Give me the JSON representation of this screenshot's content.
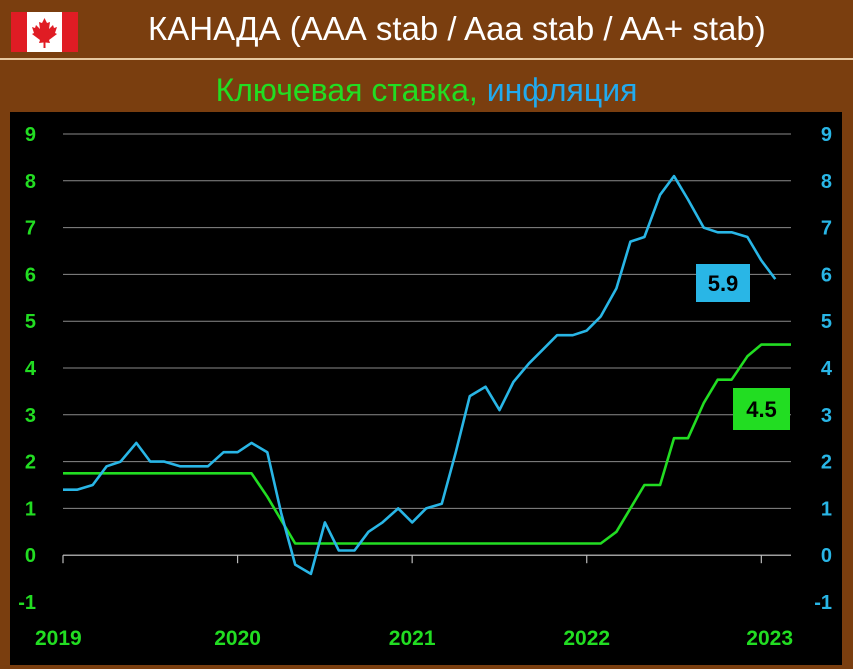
{
  "header": {
    "title": "КАНАДА (ААА stab / Aaa stab / AA+ stab)",
    "flag_icon": "canada-flag-icon"
  },
  "subtitle": {
    "rate_label": "Ключевая ставка,",
    "inflation_label": "инфляция"
  },
  "colors": {
    "background": "#7a3e0f",
    "plot_bg": "#000000",
    "rate": "#22dd22",
    "inflation": "#29b6e6",
    "grid": "#8a8a8a"
  },
  "chart_data": {
    "type": "line",
    "ylim": [
      -1,
      9
    ],
    "yticks": [
      "-1",
      "0",
      "1",
      "2",
      "3",
      "4",
      "5",
      "6",
      "7",
      "8",
      "9"
    ],
    "xticks": [
      {
        "label": "2019",
        "x": 2019
      },
      {
        "label": "2020",
        "x": 2020
      },
      {
        "label": "2021",
        "x": 2021
      },
      {
        "label": "2022",
        "x": 2022
      },
      {
        "label": "2023",
        "x": 2023
      }
    ],
    "xlim": [
      2019,
      2023.17
    ],
    "grid": true,
    "series": [
      {
        "key": "rate",
        "color": "#22dd22",
        "end_label": "4.5",
        "points": [
          [
            2019.0,
            1.75
          ],
          [
            2020.08,
            1.75
          ],
          [
            2020.17,
            1.25
          ],
          [
            2020.25,
            0.75
          ],
          [
            2020.33,
            0.25
          ],
          [
            2022.08,
            0.25
          ],
          [
            2022.17,
            0.5
          ],
          [
            2022.25,
            1.0
          ],
          [
            2022.33,
            1.5
          ],
          [
            2022.42,
            1.5
          ],
          [
            2022.5,
            2.5
          ],
          [
            2022.58,
            2.5
          ],
          [
            2022.67,
            3.25
          ],
          [
            2022.75,
            3.75
          ],
          [
            2022.83,
            3.75
          ],
          [
            2022.92,
            4.25
          ],
          [
            2023.0,
            4.5
          ],
          [
            2023.17,
            4.5
          ]
        ]
      },
      {
        "key": "inflation",
        "color": "#29b6e6",
        "end_label": "5.9",
        "points": [
          [
            2019.0,
            1.4
          ],
          [
            2019.08,
            1.4
          ],
          [
            2019.17,
            1.5
          ],
          [
            2019.25,
            1.9
          ],
          [
            2019.33,
            2.0
          ],
          [
            2019.42,
            2.4
          ],
          [
            2019.5,
            2.0
          ],
          [
            2019.58,
            2.0
          ],
          [
            2019.67,
            1.9
          ],
          [
            2019.75,
            1.9
          ],
          [
            2019.83,
            1.9
          ],
          [
            2019.92,
            2.2
          ],
          [
            2020.0,
            2.2
          ],
          [
            2020.08,
            2.4
          ],
          [
            2020.17,
            2.2
          ],
          [
            2020.25,
            0.9
          ],
          [
            2020.33,
            -0.2
          ],
          [
            2020.42,
            -0.4
          ],
          [
            2020.5,
            0.7
          ],
          [
            2020.58,
            0.1
          ],
          [
            2020.67,
            0.1
          ],
          [
            2020.75,
            0.5
          ],
          [
            2020.83,
            0.7
          ],
          [
            2020.92,
            1.0
          ],
          [
            2021.0,
            0.7
          ],
          [
            2021.08,
            1.0
          ],
          [
            2021.17,
            1.1
          ],
          [
            2021.25,
            2.2
          ],
          [
            2021.33,
            3.4
          ],
          [
            2021.42,
            3.6
          ],
          [
            2021.5,
            3.1
          ],
          [
            2021.58,
            3.7
          ],
          [
            2021.67,
            4.1
          ],
          [
            2021.75,
            4.4
          ],
          [
            2021.83,
            4.7
          ],
          [
            2021.92,
            4.7
          ],
          [
            2022.0,
            4.8
          ],
          [
            2022.08,
            5.1
          ],
          [
            2022.17,
            5.7
          ],
          [
            2022.25,
            6.7
          ],
          [
            2022.33,
            6.8
          ],
          [
            2022.42,
            7.7
          ],
          [
            2022.5,
            8.1
          ],
          [
            2022.58,
            7.6
          ],
          [
            2022.67,
            7.0
          ],
          [
            2022.75,
            6.9
          ],
          [
            2022.83,
            6.9
          ],
          [
            2022.92,
            6.8
          ],
          [
            2023.0,
            6.3
          ],
          [
            2023.08,
            5.9
          ]
        ]
      }
    ]
  }
}
